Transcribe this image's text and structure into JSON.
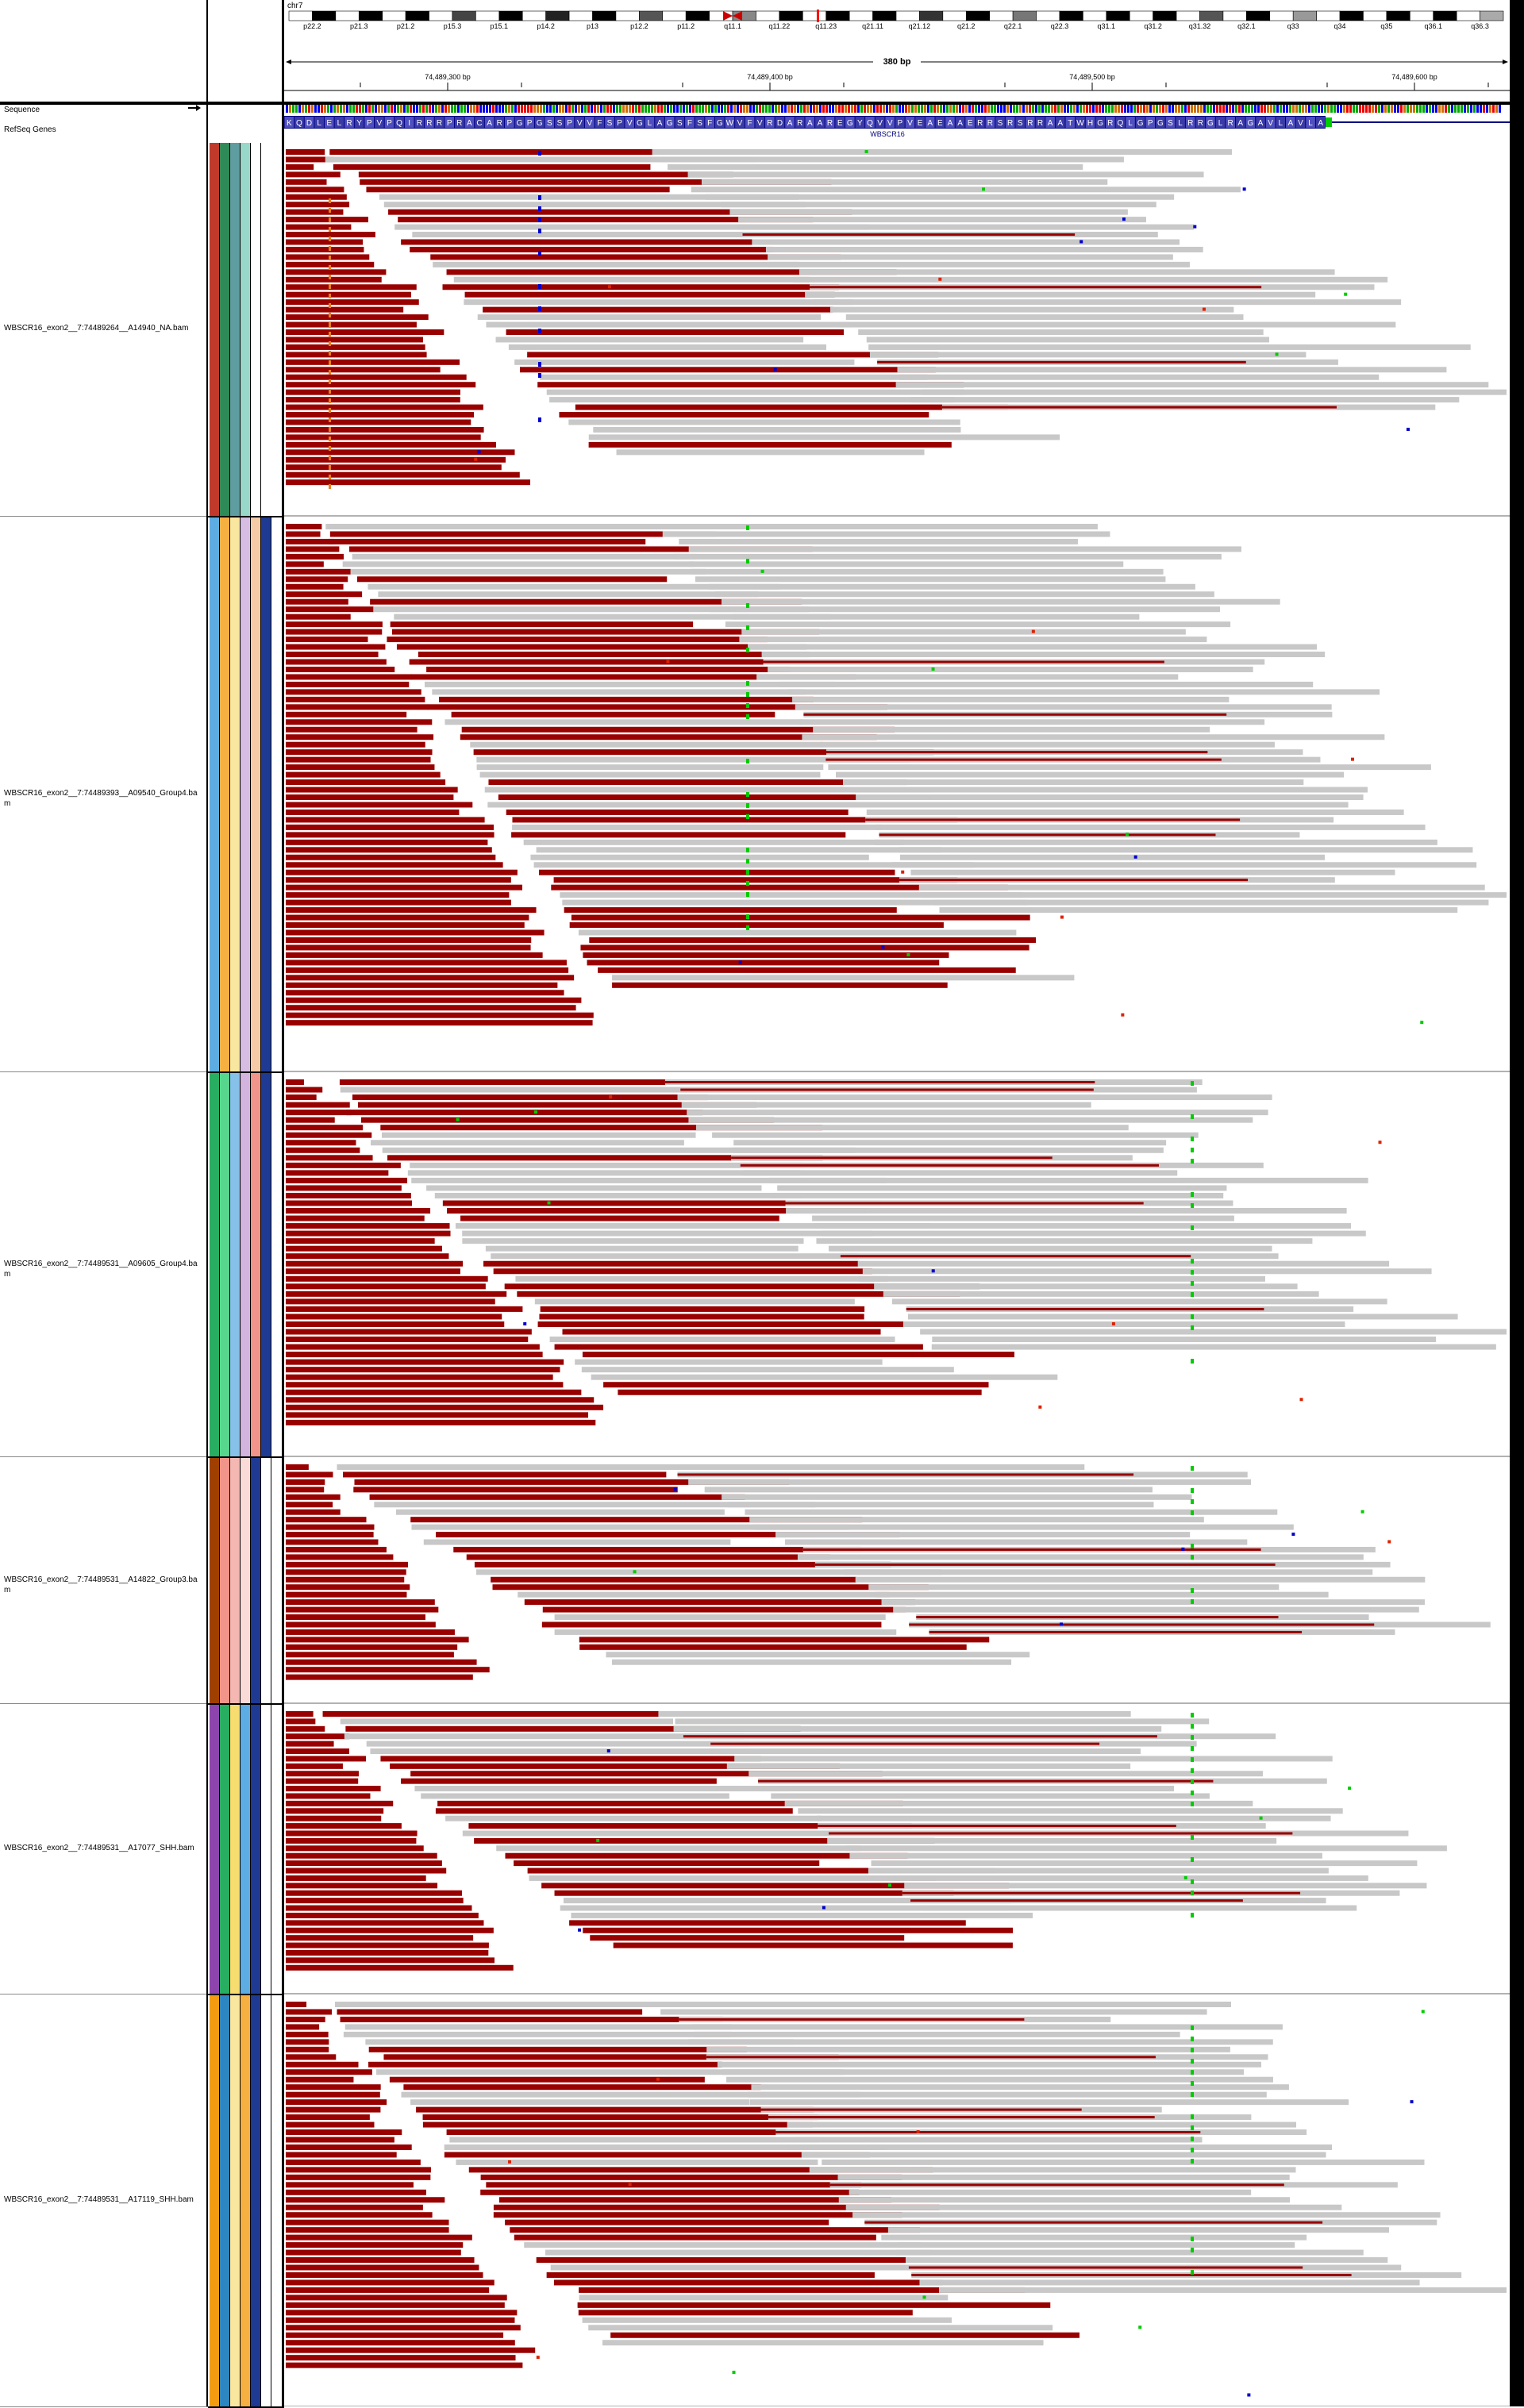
{
  "ideogram": {
    "chromosome": "chr7",
    "bands": [
      "p22.2",
      "p21.3",
      "p21.2",
      "p15.3",
      "p15.1",
      "p14.2",
      "p13",
      "p12.2",
      "p11.2",
      "q11.1",
      "q11.22",
      "q11.23",
      "q21.11",
      "q21.12",
      "q21.2",
      "q22.1",
      "q22.3",
      "q31.1",
      "q31.2",
      "q31.32",
      "q32.1",
      "q33",
      "q34",
      "q35",
      "q36.1",
      "q36.3"
    ]
  },
  "ruler": {
    "span_label": "380 bp",
    "ticks": [
      "74,489,300 bp",
      "74,489,400 bp",
      "74,489,500 bp",
      "74,489,600 bp"
    ]
  },
  "header_tracks": {
    "sequence_label": "Sequence",
    "refseq_label": "RefSeq Genes",
    "gene_name": "WBSCR16",
    "amino_acids": "KQDLELRYPVPQIRRRPRACARPGPGSSPVVFSPVGLAGSFSFGWVFVRDARAAREGYQVVPVEAEAAERRSRSRRAATWHGRQLGPGSLRRGLRAGAVLAVLA"
  },
  "tracks": [
    {
      "name": "WBSCR16_exon2__7:74489264__A14940_NA.bam",
      "colors": [
        "#c0392b",
        "#2e8b57",
        "#5f9ea0",
        "#98d8c8",
        "#ffffff"
      ]
    },
    {
      "name": "WBSCR16_exon2__7:74489393__A09540_Group4.bam",
      "colors": [
        "#5dade2",
        "#f5b041",
        "#f9e79f",
        "#d7bde2",
        "#f5cba7",
        "#1f3a93"
      ]
    },
    {
      "name": "WBSCR16_exon2__7:74489531__A09605_Group4.bam",
      "colors": [
        "#27ae60",
        "#58d68d",
        "#85c1e9",
        "#d2b4de",
        "#f1948a",
        "#1f3a93"
      ]
    },
    {
      "name": "WBSCR16_exon2__7:74489531__A14822_Group3.bam",
      "colors": [
        "#a04000",
        "#f1948a",
        "#f5b7b1",
        "#fadbd8",
        "#1f3a93",
        "#ffffff"
      ]
    },
    {
      "name": "WBSCR16_exon2__7:74489531__A17077_SHH.bam",
      "colors": [
        "#8e44ad",
        "#27ae60",
        "#f7dc6f",
        "#5dade2",
        "#1f3a93",
        "#ffffff"
      ]
    },
    {
      "name": "WBSCR16_exon2__7:74489531__A17119_SHH.bam",
      "colors": [
        "#f39c12",
        "#2e86c1",
        "#f9e79f",
        "#f5b041",
        "#1f3a93",
        "#ffffff"
      ]
    }
  ],
  "colors": {
    "read_forward_clipped": "#990000",
    "read_gray": "#c8c8c8",
    "snp_green": "#00cc00",
    "snp_blue": "#0000cc",
    "snp_red": "#dd2200"
  }
}
